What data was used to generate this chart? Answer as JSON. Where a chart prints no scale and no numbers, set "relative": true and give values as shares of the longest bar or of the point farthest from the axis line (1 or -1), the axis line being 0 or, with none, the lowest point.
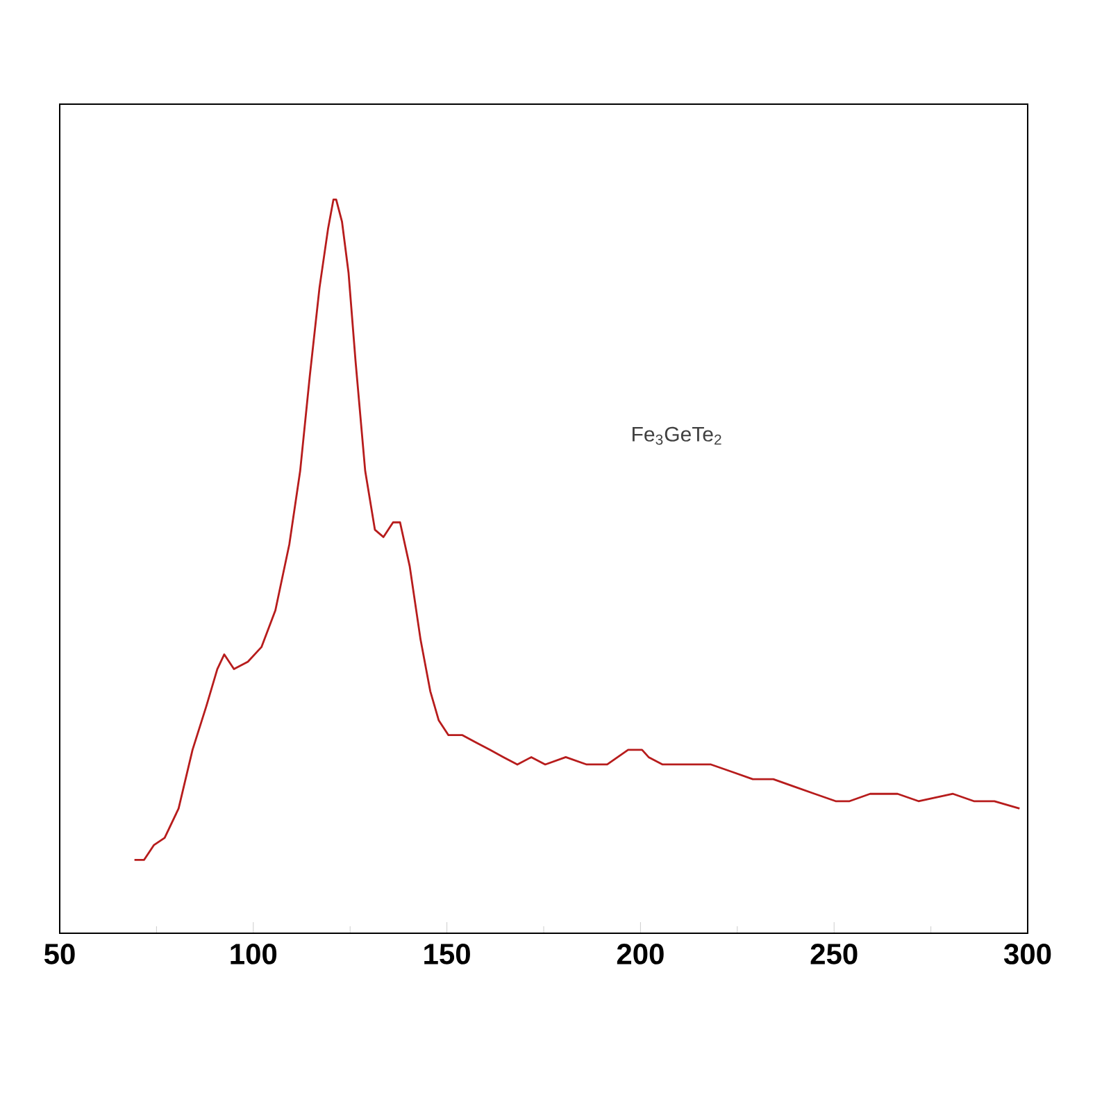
{
  "chart_data": {
    "type": "line",
    "relative": true,
    "annotations": [
      "Fe$_{3}$GeTe$_{2}$"
    ],
    "xlim": [
      50,
      300
    ],
    "xticks": [
      50,
      100,
      150,
      200,
      250,
      300
    ],
    "series": [
      {
        "color": "#b71c1c",
        "x": [
          69.3,
          71.8,
          74.3,
          77.1,
          80.7,
          84.3,
          87.9,
          90.7,
          92.5,
          95,
          98.6,
          102.1,
          105.7,
          109.3,
          112.1,
          114.6,
          117.1,
          119.3,
          120.7,
          121.4,
          122.9,
          124.6,
          126.4,
          128.9,
          131.4,
          133.6,
          136.1,
          137.9,
          140.4,
          143.2,
          145.7,
          147.9,
          150.4,
          154,
          157.5,
          161.1,
          164.6,
          168.2,
          171.8,
          175.4,
          180.7,
          186.1,
          191.4,
          196.8,
          200.4,
          202.1,
          205.7,
          212.9,
          218.2,
          223.6,
          229,
          234.3,
          239.6,
          245,
          250.4,
          254,
          259.3,
          266.4,
          271.8,
          280.7,
          286.1,
          291.4,
          297.9
        ],
        "values": [
          0.1,
          0.1,
          0.12,
          0.13,
          0.17,
          0.25,
          0.31,
          0.36,
          0.38,
          0.36,
          0.37,
          0.39,
          0.44,
          0.53,
          0.63,
          0.76,
          0.88,
          0.96,
          1.0,
          1.0,
          0.97,
          0.9,
          0.78,
          0.63,
          0.55,
          0.54,
          0.56,
          0.56,
          0.5,
          0.4,
          0.33,
          0.29,
          0.27,
          0.27,
          0.26,
          0.25,
          0.24,
          0.23,
          0.24,
          0.23,
          0.24,
          0.23,
          0.23,
          0.25,
          0.25,
          0.24,
          0.23,
          0.23,
          0.23,
          0.22,
          0.21,
          0.21,
          0.2,
          0.19,
          0.18,
          0.18,
          0.19,
          0.19,
          0.18,
          0.19,
          0.18,
          0.18,
          0.17
        ]
      }
    ]
  }
}
